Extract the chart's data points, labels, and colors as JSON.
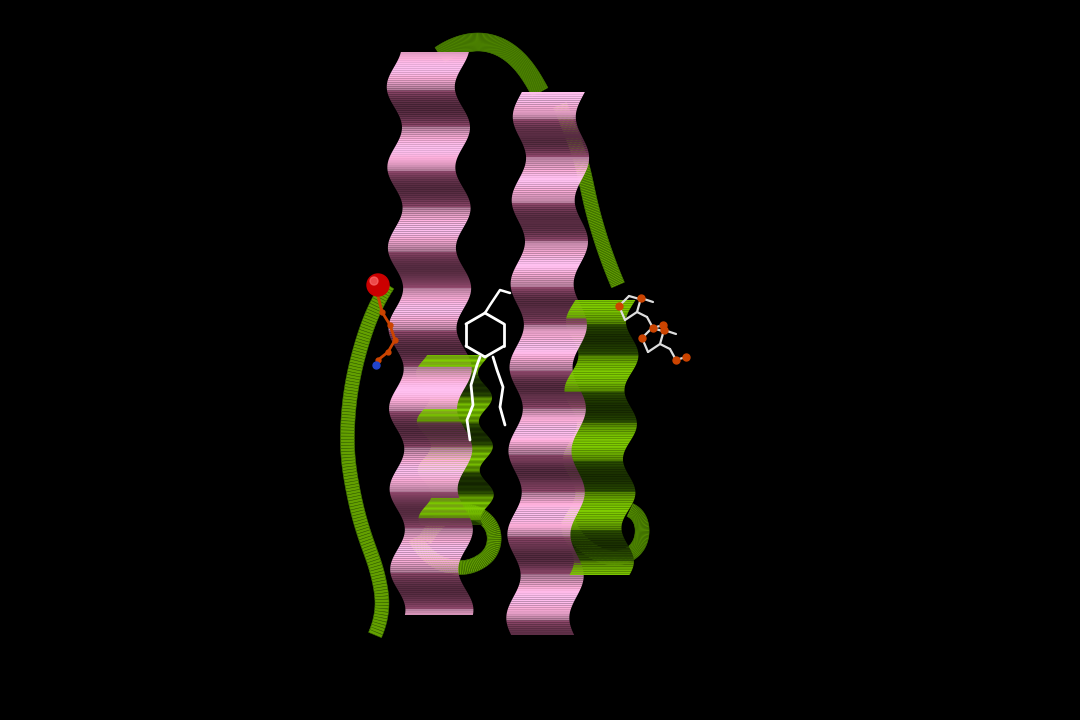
{
  "background_color": "#000000",
  "figsize": [
    10.8,
    7.2
  ],
  "dpi": 100,
  "pink": "#e8a0c8",
  "pink_back": "#c06090",
  "pink_light": "#f0c0d8",
  "gray_mid": "#888888",
  "green": "#6aaa00",
  "green_dark": "#3a6a00",
  "white": "#ffffff",
  "orange": "#cc4400",
  "red": "#cc0000",
  "blue": "#2244cc"
}
